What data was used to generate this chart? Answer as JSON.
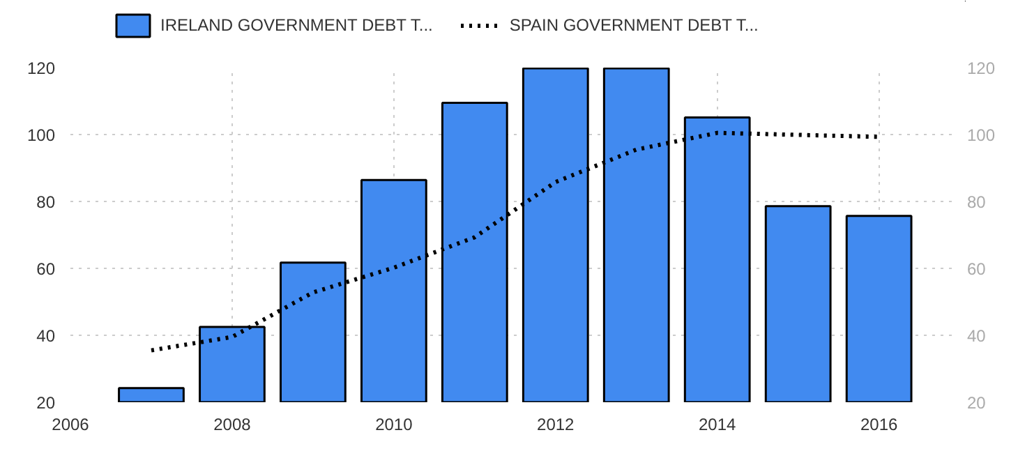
{
  "chart_data": {
    "type": "bar",
    "x": [
      2007,
      2008,
      2009,
      2010,
      2011,
      2012,
      2013,
      2014,
      2015,
      2016
    ],
    "series": [
      {
        "name": "IRELAND GOVERNMENT DEBT T...",
        "color": "#418af0",
        "values": [
          24.2,
          42.5,
          61.7,
          86.4,
          109.5,
          119.8,
          119.8,
          105.1,
          78.6,
          75.7
        ]
      },
      {
        "name": "SPAIN GOVERNMENT DEBT T...",
        "type": "line",
        "line_style": "dotted",
        "color": "#000000",
        "values": [
          35.5,
          39.5,
          52.8,
          60.2,
          69.3,
          85.8,
          95.5,
          100.5,
          99.9,
          99.3
        ]
      }
    ],
    "xlim": [
      2006,
      2016.9
    ],
    "xticks": [
      2006,
      2008,
      2010,
      2012,
      2014,
      2016
    ],
    "ylim": [
      20,
      120
    ],
    "yticks": [
      20,
      40,
      60,
      80,
      100,
      120
    ],
    "y2lim": [
      20,
      120
    ],
    "y2ticks": [
      20,
      40,
      60,
      80,
      100,
      120
    ],
    "grid": true,
    "legend": "top left"
  }
}
